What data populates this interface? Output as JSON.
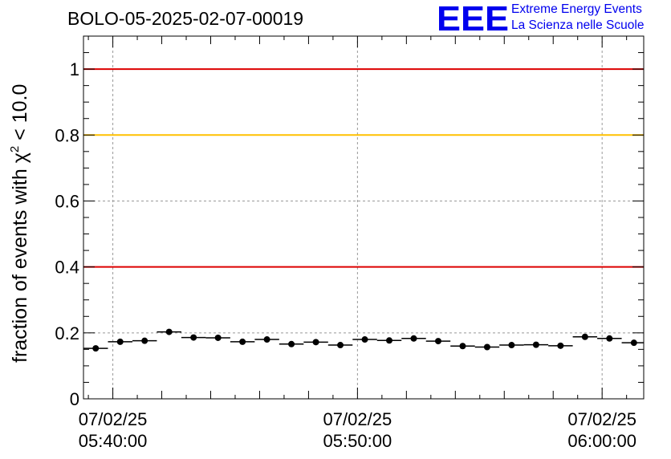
{
  "header": {
    "title": "BOLO-05-2025-02-07-00019",
    "logo_text": "EEE",
    "logo_line1": "Extreme Energy Events",
    "logo_line2": "La Scienza nelle Scuole"
  },
  "colors": {
    "threshold_red": "#dd0000",
    "threshold_yellow": "#ffc000",
    "logo_blue": "#0000ee",
    "grid": "#999999"
  },
  "chart_data": {
    "type": "scatter",
    "title": "BOLO-05-2025-02-07-00019",
    "ylabel_main": "fraction of events with χ",
    "ylabel_sup": "2",
    "ylabel_tail": " < 10.0",
    "xlabel": "",
    "ylim": [
      0,
      1.1
    ],
    "yticks": [
      0,
      0.2,
      0.4,
      0.6,
      0.8,
      1
    ],
    "ytick_labels": [
      "0",
      "0.2",
      "0.4",
      "0.6",
      "0.8",
      "1"
    ],
    "xlim_minutes": [
      -1.2,
      21.7
    ],
    "xticks_minutes": [
      0,
      10,
      20
    ],
    "xtick_labels": [
      {
        "date": "07/02/25",
        "time": "05:40:00"
      },
      {
        "date": "07/02/25",
        "time": "05:50:00"
      },
      {
        "date": "07/02/25",
        "time": "06:00:00"
      }
    ],
    "bin_width_minutes": 1,
    "x_minutes": [
      -0.7,
      0.3,
      1.3,
      2.3,
      3.3,
      4.3,
      5.3,
      6.3,
      7.3,
      8.3,
      9.3,
      10.3,
      11.3,
      12.3,
      13.3,
      14.3,
      15.3,
      16.3,
      17.3,
      18.3,
      19.3,
      20.3,
      21.3
    ],
    "values": [
      0.153,
      0.173,
      0.176,
      0.203,
      0.186,
      0.185,
      0.173,
      0.18,
      0.166,
      0.172,
      0.163,
      0.18,
      0.177,
      0.183,
      0.175,
      0.16,
      0.157,
      0.163,
      0.164,
      0.161,
      0.188,
      0.183,
      0.17
    ],
    "threshold_lines": [
      {
        "value": 1.0,
        "color": "red"
      },
      {
        "value": 0.8,
        "color": "yellow"
      },
      {
        "value": 0.4,
        "color": "red"
      }
    ]
  }
}
